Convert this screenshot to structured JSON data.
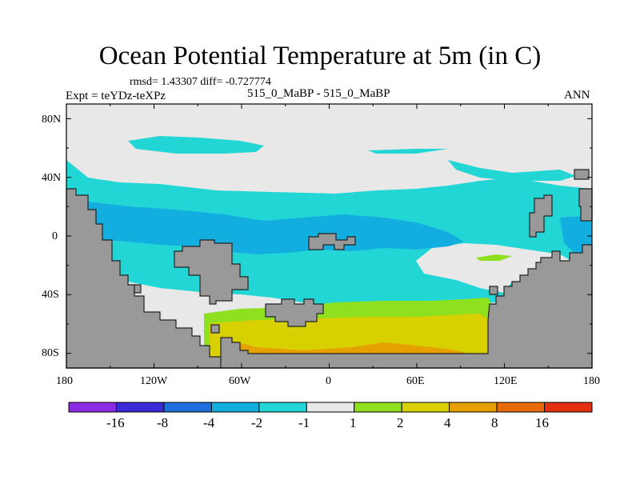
{
  "title": "Ocean Potential Temperature at 5m (in C)",
  "stats": "rmsd= 1.43307 diff= -0.727774",
  "case": "515_0_MaBP - 515_0_MaBP",
  "experiment": "Expt = teYDz-teXPz",
  "season": "ANN",
  "map": {
    "lat_ticks": [
      "80N",
      "40N",
      "0",
      "40S",
      "80S"
    ],
    "lon_ticks": [
      "180",
      "120W",
      "60W",
      "0",
      "60E",
      "120E",
      "180"
    ]
  },
  "colorbar": {
    "labels": [
      "-16",
      "-8",
      "-4",
      "-2",
      "-1",
      "1",
      "2",
      "4",
      "8",
      "16"
    ],
    "colors": [
      "#8a2be2",
      "#3a2bd6",
      "#1f6fdc",
      "#12aee0",
      "#22d6d6",
      "#e8e8e8",
      "#8fe01e",
      "#d8d000",
      "#e6a000",
      "#e86a0a",
      "#e23010"
    ]
  },
  "colors": {
    "land": "#999999",
    "missing": "#e8e8e8",
    "cyan": "#22d6d6",
    "blue": "#12aee0",
    "green": "#8fe01e",
    "yellow": "#d8d000",
    "orange": "#e6a000"
  }
}
